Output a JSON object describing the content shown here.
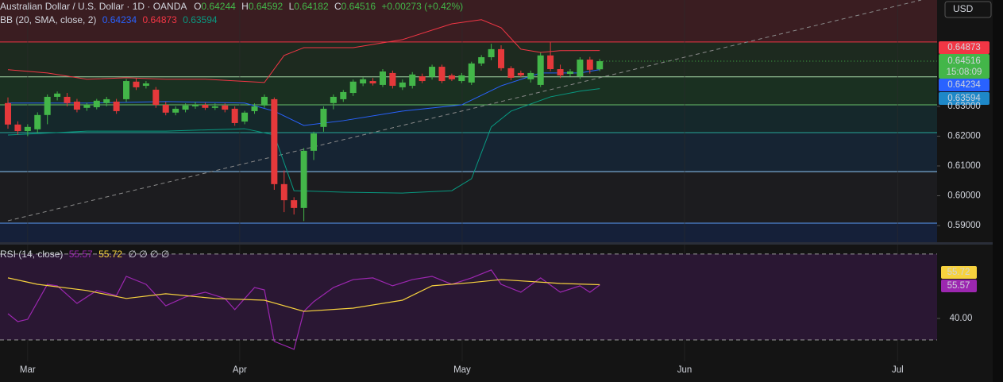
{
  "chart_data": [
    {
      "type": "candlestick",
      "title": "Australian Dollar / U.S. Dollar · 1D · OANDA",
      "ohlc_prefixes": [
        "O",
        "H",
        "L",
        "C"
      ],
      "change": "+0.00273 (+0.42%)",
      "indicator": "BB (20, SMA, close, 2)",
      "countdown": "15:08:09",
      "currency": "USD",
      "up_color": "#43b649",
      "down_color": "#e5393b",
      "open": [
        0.6311,
        0.6239,
        0.6217,
        0.6223,
        0.6271,
        0.6332,
        0.6332,
        0.6316,
        0.6295,
        0.6297,
        0.6311,
        0.6316,
        0.6324,
        0.6383,
        0.6369,
        0.6356,
        0.6305,
        0.6279,
        0.6289,
        0.63,
        0.6305,
        0.6295,
        0.6303,
        0.6292,
        0.6249,
        0.6284,
        0.6303,
        0.6324,
        0.6039,
        0.5985,
        0.5959,
        0.6151,
        0.6231,
        0.6311,
        0.6324,
        0.6345,
        0.6377,
        0.6385,
        0.6372,
        0.6412,
        0.6364,
        0.6369,
        0.6401,
        0.6399,
        0.6433,
        0.6404,
        0.6385,
        0.638,
        0.6444,
        0.6465,
        0.6492,
        0.6428,
        0.6412,
        0.6391,
        0.6372,
        0.6471,
        0.6425,
        0.6409,
        0.6401,
        0.6457,
        0.64244
      ],
      "high": [
        0.633,
        0.625,
        0.624,
        0.628,
        0.634,
        0.635,
        0.6345,
        0.6325,
        0.6312,
        0.6325,
        0.6332,
        0.6325,
        0.6392,
        0.6395,
        0.6385,
        0.6365,
        0.6315,
        0.63,
        0.631,
        0.6315,
        0.6312,
        0.631,
        0.631,
        0.63,
        0.6285,
        0.631,
        0.634,
        0.633,
        0.6085,
        0.5995,
        0.616,
        0.6215,
        0.63,
        0.634,
        0.6355,
        0.639,
        0.6398,
        0.6395,
        0.6425,
        0.642,
        0.639,
        0.6415,
        0.641,
        0.644,
        0.644,
        0.641,
        0.6412,
        0.645,
        0.6472,
        0.651,
        0.6505,
        0.6435,
        0.642,
        0.642,
        0.648,
        0.6515,
        0.644,
        0.6425,
        0.6465,
        0.6466,
        0.64592
      ],
      "low": [
        0.6225,
        0.6205,
        0.62,
        0.621,
        0.624,
        0.632,
        0.63,
        0.628,
        0.6285,
        0.629,
        0.63,
        0.6275,
        0.6315,
        0.6355,
        0.636,
        0.6295,
        0.627,
        0.627,
        0.628,
        0.6292,
        0.6288,
        0.6288,
        0.628,
        0.6235,
        0.624,
        0.6275,
        0.6295,
        0.602,
        0.5945,
        0.5937,
        0.5915,
        0.612,
        0.6215,
        0.629,
        0.6315,
        0.6335,
        0.6368,
        0.637,
        0.6365,
        0.636,
        0.6355,
        0.636,
        0.6378,
        0.639,
        0.6378,
        0.6385,
        0.6378,
        0.6372,
        0.6436,
        0.6455,
        0.642,
        0.6388,
        0.6398,
        0.638,
        0.6365,
        0.6418,
        0.6395,
        0.64,
        0.6392,
        0.641,
        0.64182
      ],
      "close": [
        0.6239,
        0.6217,
        0.6231,
        0.6271,
        0.6332,
        0.6343,
        0.6311,
        0.6289,
        0.6305,
        0.6319,
        0.6324,
        0.6284,
        0.6385,
        0.6364,
        0.6377,
        0.6305,
        0.6279,
        0.6292,
        0.6303,
        0.6305,
        0.6295,
        0.63,
        0.6289,
        0.6244,
        0.6279,
        0.63,
        0.6332,
        0.6039,
        0.5985,
        0.5959,
        0.6151,
        0.6209,
        0.6292,
        0.6332,
        0.6348,
        0.6383,
        0.6391,
        0.6377,
        0.6417,
        0.6369,
        0.638,
        0.6407,
        0.6385,
        0.6433,
        0.6385,
        0.6391,
        0.6404,
        0.6444,
        0.6465,
        0.6492,
        0.6428,
        0.6396,
        0.6404,
        0.6412,
        0.6471,
        0.6425,
        0.6404,
        0.6417,
        0.6457,
        0.6423,
        0.64516
      ],
      "bands": [
        {
          "color": "#2962ff",
          "x": [
            0,
            8,
            16,
            24,
            27,
            30,
            34,
            40,
            46,
            48,
            50,
            54,
            58,
            60
          ],
          "values": [
            0.6311,
            0.6311,
            0.6316,
            0.6311,
            0.6284,
            0.6236,
            0.6252,
            0.6284,
            0.6305,
            0.6337,
            0.6369,
            0.6412,
            0.6412,
            0.64234
          ]
        },
        {
          "color": "#f23645",
          "x": [
            0,
            4,
            8,
            12,
            16,
            20,
            26,
            28,
            30,
            35,
            40,
            45,
            48,
            50,
            52,
            54,
            56,
            60
          ],
          "values": [
            0.6423,
            0.6412,
            0.6391,
            0.6396,
            0.6391,
            0.6391,
            0.638,
            0.6471,
            0.6497,
            0.6497,
            0.6524,
            0.6577,
            0.6591,
            0.6564,
            0.6492,
            0.6481,
            0.6487,
            0.64873
          ]
        },
        {
          "color": "#089981",
          "x": [
            0,
            8,
            16,
            24,
            27,
            29,
            34,
            40,
            45,
            47,
            49,
            51,
            55,
            58,
            60
          ],
          "values": [
            0.6204,
            0.6217,
            0.6217,
            0.6225,
            0.6204,
            0.6017,
            0.6012,
            0.6009,
            0.6017,
            0.6057,
            0.6231,
            0.6284,
            0.6332,
            0.6351,
            0.63594
          ]
        }
      ],
      "levels": [
        {
          "value": 0.6516,
          "color": "#f23645"
        },
        {
          "value": 0.6399,
          "color": "#a5d6a7"
        },
        {
          "value": 0.6305,
          "color": "#66bb6a"
        },
        {
          "value": 0.6212,
          "color": "#26a69a"
        },
        {
          "value": 0.6081,
          "color": "#90caf9"
        },
        {
          "value": 0.5908,
          "color": "#5b9cf6"
        }
      ],
      "zones": [
        "#3a1d21",
        "#1d2a1f",
        "#1a3021",
        "#15282b",
        "#162433",
        "#1c1c1f",
        "#152039"
      ],
      "xlim": [
        -0.805,
        94.2
      ],
      "xticks": [
        {
          "value": 2.0,
          "label": "Mar"
        },
        {
          "value": 23.5,
          "label": "Apr"
        },
        {
          "value": 46.05,
          "label": "May"
        },
        {
          "value": 68.6,
          "label": "Jun"
        },
        {
          "value": 90.2,
          "label": "Jul"
        }
      ],
      "ylim": [
        0.5844,
        0.6657
      ],
      "yticks": [
        {
          "value": 0.59,
          "label": "0.59000"
        },
        {
          "value": 0.6,
          "label": "0.60000"
        },
        {
          "value": 0.61,
          "label": "0.61000"
        },
        {
          "value": 0.62,
          "label": "0.62000"
        },
        {
          "value": 0.63,
          "label": "0.63000"
        }
      ]
    },
    {
      "type": "line",
      "title": "RSI (14, close)",
      "extra": "∅ ∅ ∅ ∅",
      "series": [
        {
          "color": "#9c27b0",
          "x": [
            0,
            1,
            2,
            4,
            5,
            7,
            9,
            11,
            12,
            14,
            16,
            18,
            20,
            22,
            23,
            25,
            26,
            27,
            29,
            30,
            31,
            33,
            35,
            37,
            39,
            41,
            43,
            45,
            47,
            49,
            50,
            52,
            54,
            56,
            58,
            59,
            60
          ],
          "values": [
            42.2,
            38.5,
            39.6,
            55.9,
            55.2,
            47.0,
            53.0,
            50.7,
            59.6,
            55.9,
            45.9,
            50.0,
            52.2,
            49.3,
            44.1,
            54.4,
            53.3,
            29.3,
            25.6,
            43.3,
            47.8,
            54.4,
            58.1,
            58.9,
            55.2,
            58.1,
            59.6,
            55.9,
            58.9,
            62.6,
            55.9,
            52.2,
            58.9,
            52.2,
            55.2,
            52.2,
            55.57
          ]
        },
        {
          "color": "#f7d23e",
          "x": [
            0,
            3,
            8,
            12,
            16,
            21,
            26,
            30,
            35,
            40,
            43,
            47,
            50,
            56,
            60
          ],
          "values": [
            58.9,
            55.9,
            53.0,
            49.3,
            51.5,
            49.3,
            48.5,
            43.3,
            44.8,
            48.5,
            55.2,
            56.7,
            58.1,
            56.3,
            55.72
          ]
        }
      ],
      "bands": [
        30,
        70
      ],
      "ylim": [
        20,
        74.4
      ],
      "yticks": [
        {
          "value": 40,
          "label": "40.00"
        }
      ]
    }
  ]
}
